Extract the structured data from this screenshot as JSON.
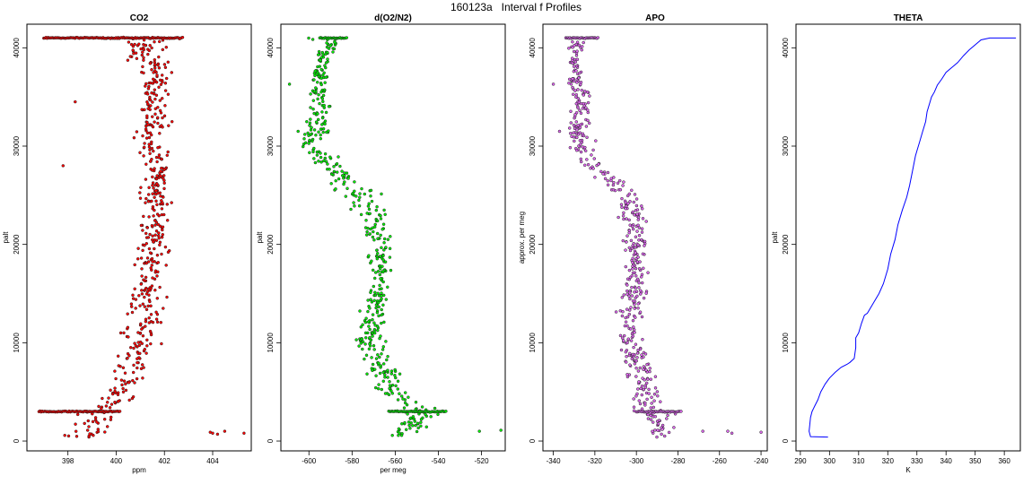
{
  "figure_title": "160123a   Interval f Profiles",
  "chart_data": [
    {
      "type": "scatter",
      "title": "CO2",
      "xlabel": "ppm",
      "ylabel": "palt",
      "xlim": [
        396.3,
        405.6
      ],
      "ylim": [
        -1000,
        42400
      ],
      "xticks": [
        398,
        400,
        402,
        404
      ],
      "yticks": [
        0,
        10000,
        20000,
        30000,
        40000
      ],
      "color": "#ff0000",
      "profile": {
        "palt": [
          300,
          1200,
          3000,
          5000,
          8000,
          10000,
          13000,
          16000,
          20000,
          23000,
          26000,
          30000,
          33000,
          36000,
          38000,
          39500,
          41000
        ],
        "center": [
          398.6,
          399.0,
          399.4,
          400.2,
          400.6,
          401.0,
          401.1,
          401.3,
          401.5,
          401.6,
          401.7,
          401.5,
          401.6,
          401.7,
          401.8,
          401.0,
          401.2
        ],
        "spread": [
          0.8,
          0.7,
          0.8,
          0.6,
          0.7,
          0.7,
          0.7,
          0.6,
          0.6,
          0.6,
          0.6,
          0.6,
          0.6,
          0.6,
          0.6,
          0.8,
          0.9
        ]
      },
      "bands": [
        {
          "palt": 41000,
          "x_from": 397.0,
          "x_to": 402.8
        },
        {
          "palt": 3000,
          "x_from": 396.8,
          "x_to": 400.2
        }
      ],
      "outliers": [
        {
          "x": 404.0,
          "y": 800
        },
        {
          "x": 404.2,
          "y": 700
        },
        {
          "x": 403.9,
          "y": 900
        },
        {
          "x": 404.5,
          "y": 1000
        },
        {
          "x": 405.3,
          "y": 800
        },
        {
          "x": 397.8,
          "y": 28000
        },
        {
          "x": 398.3,
          "y": 34500
        }
      ]
    },
    {
      "type": "scatter",
      "title": "d(O2/N2)",
      "xlabel": "per meg",
      "ylabel": "palt",
      "xlim": [
        -613,
        -509
      ],
      "ylim": [
        -1000,
        42400
      ],
      "xticks": [
        -600,
        -580,
        -560,
        -540,
        -520
      ],
      "yticks": [
        0,
        10000,
        20000,
        30000,
        40000
      ],
      "color": "#00ee00",
      "profile": {
        "palt": [
          500,
          1500,
          3000,
          5000,
          8000,
          10000,
          13000,
          16000,
          20000,
          23000,
          25000,
          28000,
          30000,
          32000,
          34000,
          36000,
          39000,
          40500,
          41000
        ],
        "center": [
          -556,
          -552,
          -548,
          -562,
          -566,
          -572,
          -570,
          -568,
          -567,
          -570,
          -578,
          -590,
          -600,
          -596,
          -594,
          -595,
          -594,
          -588,
          -590
        ],
        "spread": [
          7,
          6,
          8,
          6,
          6,
          6,
          5,
          5,
          5,
          6,
          8,
          6,
          5,
          5,
          5,
          5,
          3,
          5,
          8
        ]
      },
      "bands": [
        {
          "palt": 41000,
          "x_from": -595,
          "x_to": -582
        },
        {
          "palt": 3000,
          "x_from": -563,
          "x_to": -536
        }
      ],
      "outliers": [
        {
          "x": -609,
          "y": 36300
        },
        {
          "x": -605,
          "y": 31500
        },
        {
          "x": -521,
          "y": 1000
        },
        {
          "x": -511,
          "y": 1100
        },
        {
          "x": -578,
          "y": 10300
        }
      ]
    },
    {
      "type": "scatter",
      "title": "APO",
      "xlabel": "",
      "ylabel": "approx. per meg",
      "xlim": [
        -345,
        -237
      ],
      "ylim": [
        -1000,
        42400
      ],
      "xticks": [
        -340,
        -320,
        -300,
        -280,
        -260,
        -240
      ],
      "yticks": [
        0,
        10000,
        20000,
        30000,
        40000
      ],
      "color": "#dd66ee",
      "profile": {
        "palt": [
          500,
          1500,
          3000,
          5000,
          8000,
          10000,
          13000,
          16000,
          20000,
          23000,
          25000,
          27000,
          29000,
          31000,
          33000,
          35000,
          36000,
          39000,
          41000
        ],
        "center": [
          -287,
          -290,
          -292,
          -296,
          -300,
          -302,
          -303,
          -300,
          -300,
          -301,
          -305,
          -314,
          -326,
          -328,
          -328,
          -326,
          -329,
          -330,
          -328
        ],
        "spread": [
          6,
          6,
          7,
          6,
          6,
          6,
          6,
          5,
          5,
          6,
          6,
          6,
          5,
          5,
          5,
          5,
          5,
          3,
          5
        ]
      },
      "bands": [
        {
          "palt": 41000,
          "x_from": -334,
          "x_to": -318
        },
        {
          "palt": 3000,
          "x_from": -300,
          "x_to": -278
        }
      ],
      "outliers": [
        {
          "x": -340,
          "y": 36300
        },
        {
          "x": -337,
          "y": 31500
        },
        {
          "x": -256,
          "y": 1000
        },
        {
          "x": -254,
          "y": 800
        },
        {
          "x": -240,
          "y": 900
        },
        {
          "x": -268,
          "y": 1000
        }
      ]
    },
    {
      "type": "line",
      "title": "THETA",
      "xlabel": "K",
      "ylabel": "palt",
      "xlim": [
        288.5,
        365.5
      ],
      "ylim": [
        -1000,
        42400
      ],
      "xticks": [
        290,
        300,
        310,
        320,
        330,
        340,
        350,
        360
      ],
      "yticks": [
        0,
        10000,
        20000,
        30000,
        40000
      ],
      "color": "#0000ff",
      "x": [
        299.5,
        293.5,
        293.0,
        293.2,
        293.5,
        294.0,
        294.5,
        295.0,
        296.0,
        297.0,
        298.5,
        300.0,
        302.0,
        304.0,
        306.0,
        307.0,
        308.5,
        309.0,
        309.0,
        310.0,
        311.0,
        312.0,
        313.0,
        315.0,
        317.0,
        318.5,
        320.0,
        321.0,
        322.5,
        323.5,
        325.0,
        326.5,
        327.5,
        328.5,
        329.5,
        330.0,
        331.0,
        332.0,
        333.0,
        333.5,
        334.5,
        335.0,
        336.0,
        337.0,
        338.5,
        340.0,
        342.0,
        344.0,
        346.0,
        348.0,
        350.0,
        352.0,
        355.0,
        360.0,
        364.0
      ],
      "y": [
        400,
        450,
        1000,
        1600,
        2400,
        3000,
        3300,
        3600,
        4200,
        5000,
        5800,
        6400,
        7000,
        7500,
        7800,
        8000,
        8400,
        9500,
        10500,
        11000,
        12000,
        12800,
        13000,
        14000,
        15000,
        16000,
        17500,
        19000,
        20500,
        22000,
        23500,
        24800,
        26000,
        27500,
        29000,
        29500,
        30500,
        31500,
        32500,
        33500,
        34500,
        35000,
        35500,
        36200,
        36800,
        37500,
        38000,
        38500,
        39200,
        39800,
        40300,
        40800,
        41000,
        41000,
        41000
      ]
    }
  ]
}
